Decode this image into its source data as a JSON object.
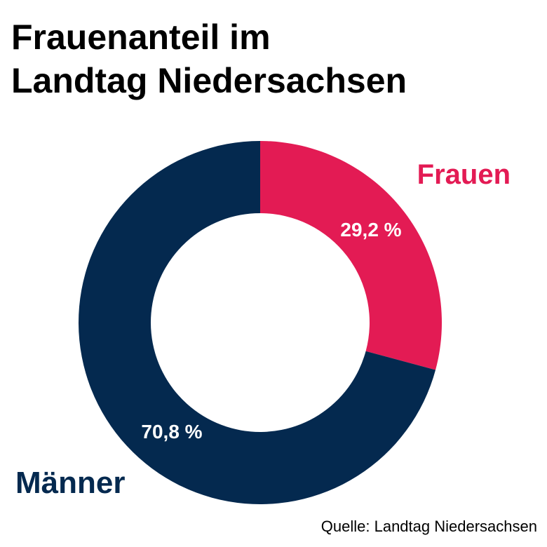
{
  "title_lines": [
    "Frauenanteil im",
    "Landtag Niedersachsen"
  ],
  "source": "Quelle: Landtag Niedersachsen",
  "colors": {
    "frauen": "#e31b54",
    "maenner": "#04294f",
    "text_on_slice": "#ffffff"
  },
  "chart_data": {
    "type": "pie",
    "style": "donut",
    "title": "Frauenanteil im Landtag Niedersachsen",
    "slices": [
      {
        "name": "Frauen",
        "value": 29.2,
        "label": "29,2 %",
        "color": "#e31b54"
      },
      {
        "name": "Männer",
        "value": 70.8,
        "label": "70,8 %",
        "color": "#04294f"
      }
    ]
  }
}
